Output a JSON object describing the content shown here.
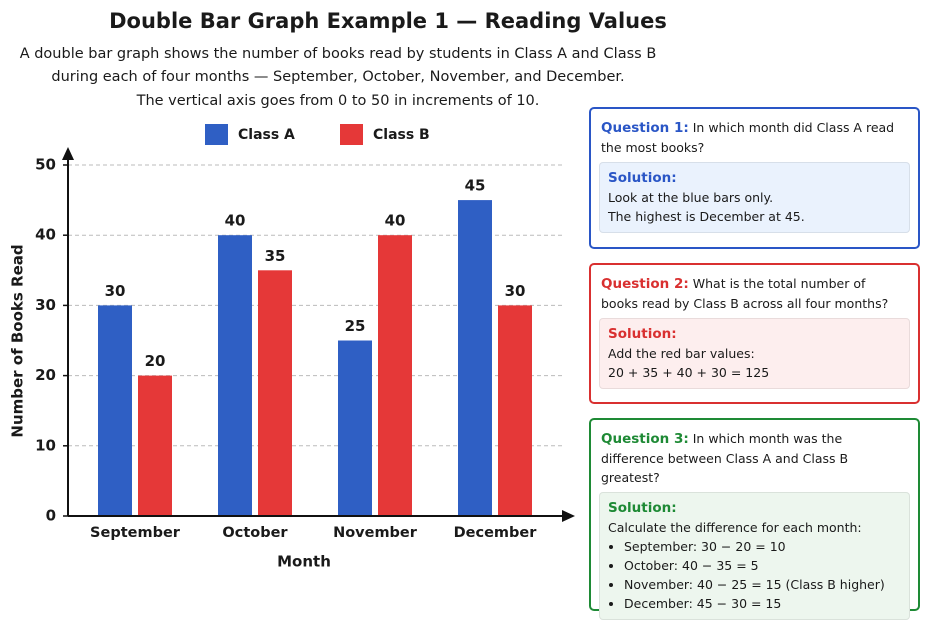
{
  "chart_data": {
    "type": "bar",
    "title": "Double Bar Graph Example 1 — Reading Values",
    "subtitle": [
      "A double bar graph shows the number of books read by students in Class A and Class B",
      "during each of four months — September, October, November, and December.",
      "The vertical axis goes from 0 to 50 in increments of 10."
    ],
    "xlabel": "Month",
    "ylabel": "Number of Books Read",
    "categories": [
      "September",
      "October",
      "November",
      "December"
    ],
    "series": [
      {
        "name": "Class A",
        "color": "#2f5fc4",
        "values": [
          30,
          40,
          25,
          45
        ]
      },
      {
        "name": "Class B",
        "color": "#e53838",
        "values": [
          20,
          35,
          40,
          30
        ]
      }
    ],
    "ylim": [
      0,
      50
    ],
    "yticks": [
      0,
      10,
      20,
      30,
      40,
      50
    ],
    "grid": true,
    "legend": "top"
  },
  "questions": [
    {
      "label": "Question 1:",
      "text": "In which month did Class A read the most books?",
      "color": "#2a56c6",
      "bg": "#eaf2fd",
      "solution_label": "Solution:",
      "lines": [
        "Look at the blue bars only.",
        "The highest is December at 45."
      ],
      "bullets": []
    },
    {
      "label": "Question 2:",
      "text": "What is the total number of books read by Class B across all four months?",
      "color": "#d93030",
      "bg": "#fdeeee",
      "solution_label": "Solution:",
      "lines": [
        "Add the red bar values:",
        "20 + 35 + 40 + 30 = 125"
      ],
      "bullets": []
    },
    {
      "label": "Question 3:",
      "text": "In which month was the difference between Class A and Class B greatest?",
      "color": "#1e8a35",
      "bg": "#edf6ee",
      "solution_label": "Solution:",
      "lines": [
        "Calculate the difference for each month:"
      ],
      "bullets": [
        "September: 30 − 20 = 10",
        "October: 40 − 35 = 5",
        "November: 40 − 25 = 15 (Class B higher)",
        "December: 45 − 30 = 15"
      ]
    }
  ]
}
